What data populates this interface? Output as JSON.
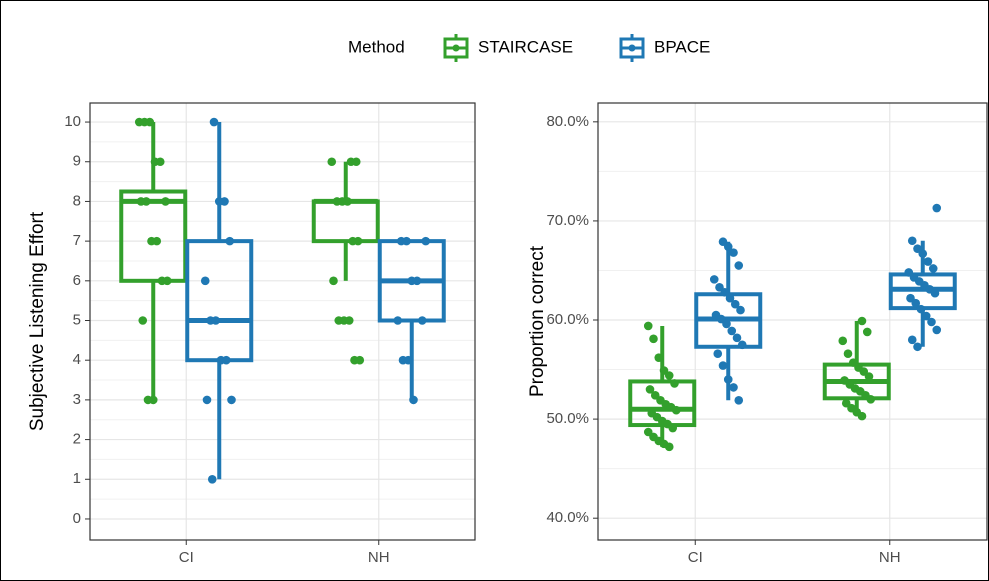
{
  "legend_title": "Method",
  "chart_data": [
    {
      "type": "boxplot",
      "ylabel": "Subjective Listening Effort",
      "categories": [
        "CI",
        "NH"
      ],
      "ylim": [
        -0.53,
        10.48
      ],
      "yticks": [
        0,
        1,
        2,
        3,
        4,
        5,
        6,
        7,
        8,
        9,
        10
      ],
      "grid": true,
      "series": [
        {
          "name": "STAIRCASE",
          "color": "#33a02c",
          "boxes": [
            {
              "min": 3,
              "q1": 6,
              "median": 8,
              "q3": 8.25,
              "max": 10,
              "points": [
                10,
                10,
                10,
                9,
                9,
                8,
                8,
                8,
                7,
                7,
                6,
                6,
                5,
                3,
                3
              ]
            },
            {
              "min": 6,
              "q1": 7,
              "median": 8,
              "q3": 8,
              "max": 9,
              "points": [
                9,
                9,
                9,
                8,
                8,
                8,
                7,
                7,
                6,
                5,
                5,
                5,
                4,
                4
              ]
            }
          ]
        },
        {
          "name": "BPACE",
          "color": "#1f78b4",
          "boxes": [
            {
              "min": 1,
              "q1": 4,
              "median": 5,
              "q3": 7,
              "max": 10,
              "points": [
                10,
                8,
                8,
                7,
                6,
                5,
                5,
                4,
                4,
                3,
                3,
                1
              ]
            },
            {
              "min": 3,
              "q1": 5,
              "median": 6,
              "q3": 7,
              "max": 7,
              "points": [
                7,
                7,
                7,
                6,
                6,
                5,
                5,
                4,
                4,
                3
              ]
            }
          ]
        }
      ]
    },
    {
      "type": "boxplot",
      "ylabel": "Proportion correct",
      "categories": [
        "CI",
        "NH"
      ],
      "ylim": [
        37.8,
        81.9
      ],
      "yticks": [
        {
          "value": 40,
          "label": "40.0%"
        },
        {
          "value": 50,
          "label": "50.0%"
        },
        {
          "value": 60,
          "label": "60.0%"
        },
        {
          "value": 70,
          "label": "70.0%"
        },
        {
          "value": 80,
          "label": "80.0%"
        }
      ],
      "grid": true,
      "series": [
        {
          "color": "#33a02c",
          "boxes": [
            {
              "min": 47.2,
              "q1": 49.4,
              "median": 51.0,
              "q3": 53.8,
              "max": 59.4,
              "points": [
                59.4,
                58.1,
                56.2,
                54.9,
                54.4,
                53.6,
                53.0,
                52.4,
                51.9,
                51.5,
                51.2,
                50.9,
                50.6,
                50.2,
                49.8,
                49.5,
                49.1,
                48.7,
                48.2,
                47.8,
                47.5,
                47.2
              ]
            },
            {
              "min": 50.3,
              "q1": 52.1,
              "median": 53.8,
              "q3": 55.5,
              "max": 59.9,
              "points": [
                59.9,
                58.8,
                57.9,
                56.6,
                55.7,
                55.2,
                54.8,
                54.3,
                53.9,
                53.5,
                53.1,
                52.8,
                52.4,
                52.0,
                51.6,
                51.1,
                50.7,
                50.3
              ]
            }
          ]
        },
        {
          "color": "#1f78b4",
          "boxes": [
            {
              "min": 51.9,
              "q1": 57.3,
              "median": 60.1,
              "q3": 62.6,
              "max": 67.9,
              "points": [
                67.9,
                67.4,
                66.8,
                65.5,
                64.1,
                63.3,
                62.8,
                62.2,
                61.6,
                61.0,
                60.5,
                60.1,
                59.6,
                58.9,
                58.2,
                57.5,
                56.6,
                55.4,
                54.0,
                53.2,
                51.9
              ]
            },
            {
              "min": 57.3,
              "q1": 61.2,
              "median": 63.1,
              "q3": 64.6,
              "max": 68.0,
              "points": [
                71.3,
                68.0,
                67.2,
                66.7,
                65.9,
                65.2,
                64.8,
                64.3,
                63.9,
                63.5,
                63.1,
                62.7,
                62.2,
                61.7,
                61.1,
                60.4,
                59.8,
                59.0,
                58.0,
                57.3
              ]
            }
          ]
        }
      ]
    }
  ]
}
